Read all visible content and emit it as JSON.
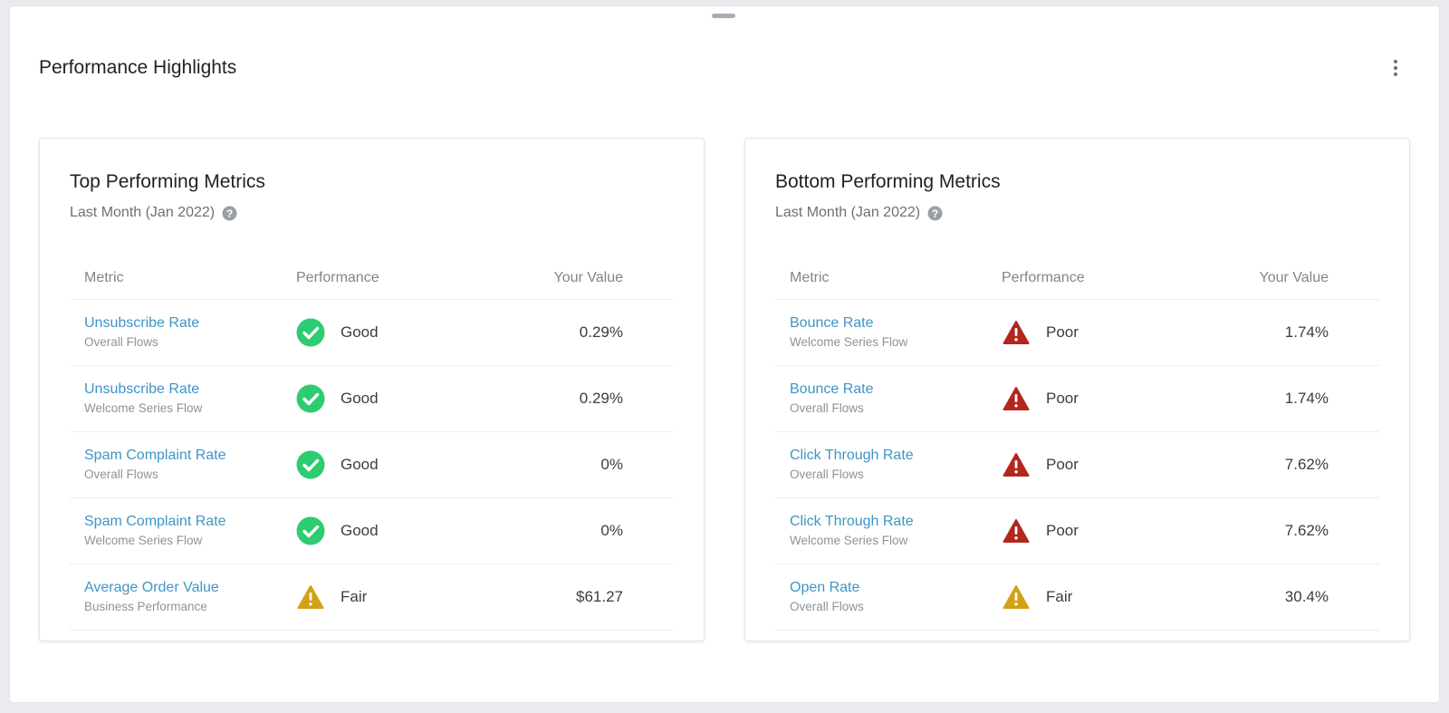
{
  "section": {
    "title": "Performance Highlights"
  },
  "colors": {
    "link": "#3f95c6",
    "good": "#2ecc71",
    "poor": "#b3261e",
    "fair": "#d4a017"
  },
  "columns": {
    "metric": "Metric",
    "performance": "Performance",
    "value": "Your Value"
  },
  "top": {
    "title": "Top Performing Metrics",
    "subtitle": "Last Month (Jan 2022)",
    "rows": [
      {
        "metric": "Unsubscribe Rate",
        "sub": "Overall Flows",
        "status": "Good",
        "icon": "check-circle-icon",
        "value": "0.29%"
      },
      {
        "metric": "Unsubscribe Rate",
        "sub": "Welcome Series Flow",
        "status": "Good",
        "icon": "check-circle-icon",
        "value": "0.29%"
      },
      {
        "metric": "Spam Complaint Rate",
        "sub": "Overall Flows",
        "status": "Good",
        "icon": "check-circle-icon",
        "value": "0%"
      },
      {
        "metric": "Spam Complaint Rate",
        "sub": "Welcome Series Flow",
        "status": "Good",
        "icon": "check-circle-icon",
        "value": "0%"
      },
      {
        "metric": "Average Order Value",
        "sub": "Business Performance",
        "status": "Fair",
        "icon": "warning-triangle-icon",
        "value": "$61.27"
      }
    ]
  },
  "bottom": {
    "title": "Bottom Performing Metrics",
    "subtitle": "Last Month (Jan 2022)",
    "rows": [
      {
        "metric": "Bounce Rate",
        "sub": "Welcome Series Flow",
        "status": "Poor",
        "icon": "alert-triangle-icon",
        "value": "1.74%"
      },
      {
        "metric": "Bounce Rate",
        "sub": "Overall Flows",
        "status": "Poor",
        "icon": "alert-triangle-icon",
        "value": "1.74%"
      },
      {
        "metric": "Click Through Rate",
        "sub": "Overall Flows",
        "status": "Poor",
        "icon": "alert-triangle-icon",
        "value": "7.62%"
      },
      {
        "metric": "Click Through Rate",
        "sub": "Welcome Series Flow",
        "status": "Poor",
        "icon": "alert-triangle-icon",
        "value": "7.62%"
      },
      {
        "metric": "Open Rate",
        "sub": "Overall Flows",
        "status": "Fair",
        "icon": "warning-triangle-icon",
        "value": "30.4%"
      }
    ]
  }
}
